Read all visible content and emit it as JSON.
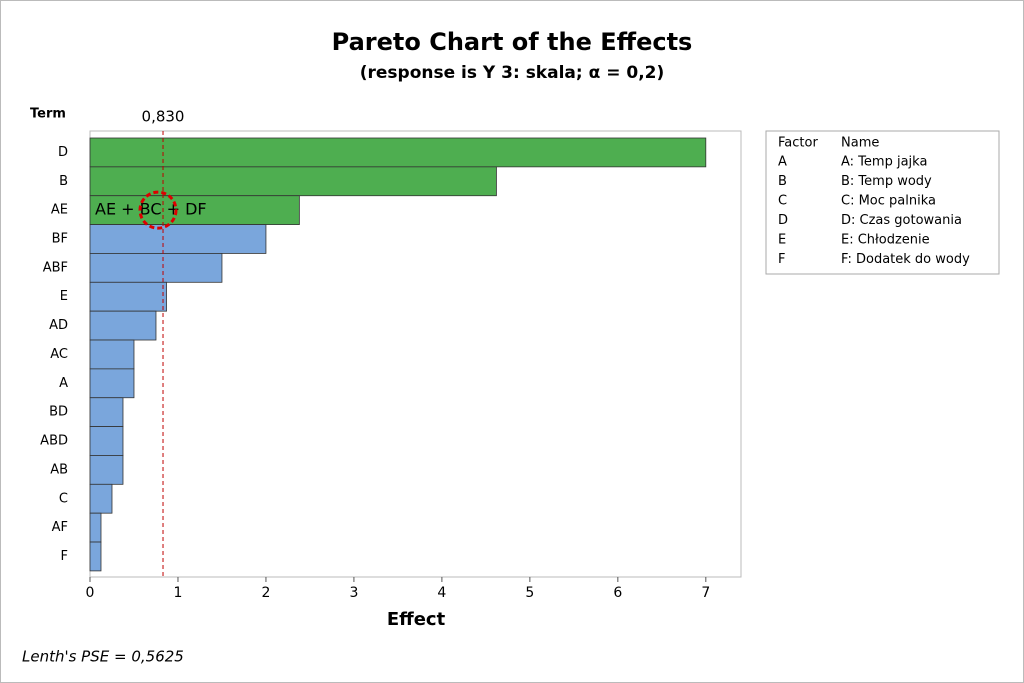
{
  "chart_data": {
    "type": "hbar",
    "title": "Pareto Chart of the Effects",
    "subtitle": "(response is Y 3: skala; α = 0,2)",
    "y_label": "Term",
    "x_label": "Effect",
    "categories": [
      "D",
      "B",
      "AE",
      "BF",
      "ABF",
      "E",
      "AD",
      "AC",
      "A",
      "BD",
      "ABD",
      "AB",
      "C",
      "AF",
      "F"
    ],
    "values": [
      7.0,
      4.62,
      2.38,
      2.0,
      1.5,
      0.87,
      0.75,
      0.5,
      0.5,
      0.375,
      0.375,
      0.375,
      0.25,
      0.125,
      0.125
    ],
    "colors": [
      "#4eae50",
      "#4eae50",
      "#4eae50",
      "#7aa6dc",
      "#7aa6dc",
      "#7aa6dc",
      "#7aa6dc",
      "#7aa6dc",
      "#7aa6dc",
      "#7aa6dc",
      "#7aa6dc",
      "#7aa6dc",
      "#7aa6dc",
      "#7aa6dc",
      "#7aa6dc"
    ],
    "xlim": [
      0,
      7.4
    ],
    "xticks": [
      0,
      1,
      2,
      3,
      4,
      5,
      6,
      7
    ],
    "reference_line": {
      "value": 0.83,
      "label": "0,830",
      "color": "#c00000"
    },
    "annotation": "AE + BC + DF",
    "factor_legend": {
      "headers": [
        "Factor",
        "Name"
      ],
      "rows": [
        [
          "A",
          "A: Temp jajka"
        ],
        [
          "B",
          "B: Temp wody"
        ],
        [
          "C",
          "C: Moc palnika"
        ],
        [
          "D",
          "D: Czas gotowania"
        ],
        [
          "E",
          "E: Chłodzenie"
        ],
        [
          "F",
          "F: Dodatek do wody"
        ]
      ]
    },
    "footnote": "Lenth's PSE = 0,5625"
  }
}
